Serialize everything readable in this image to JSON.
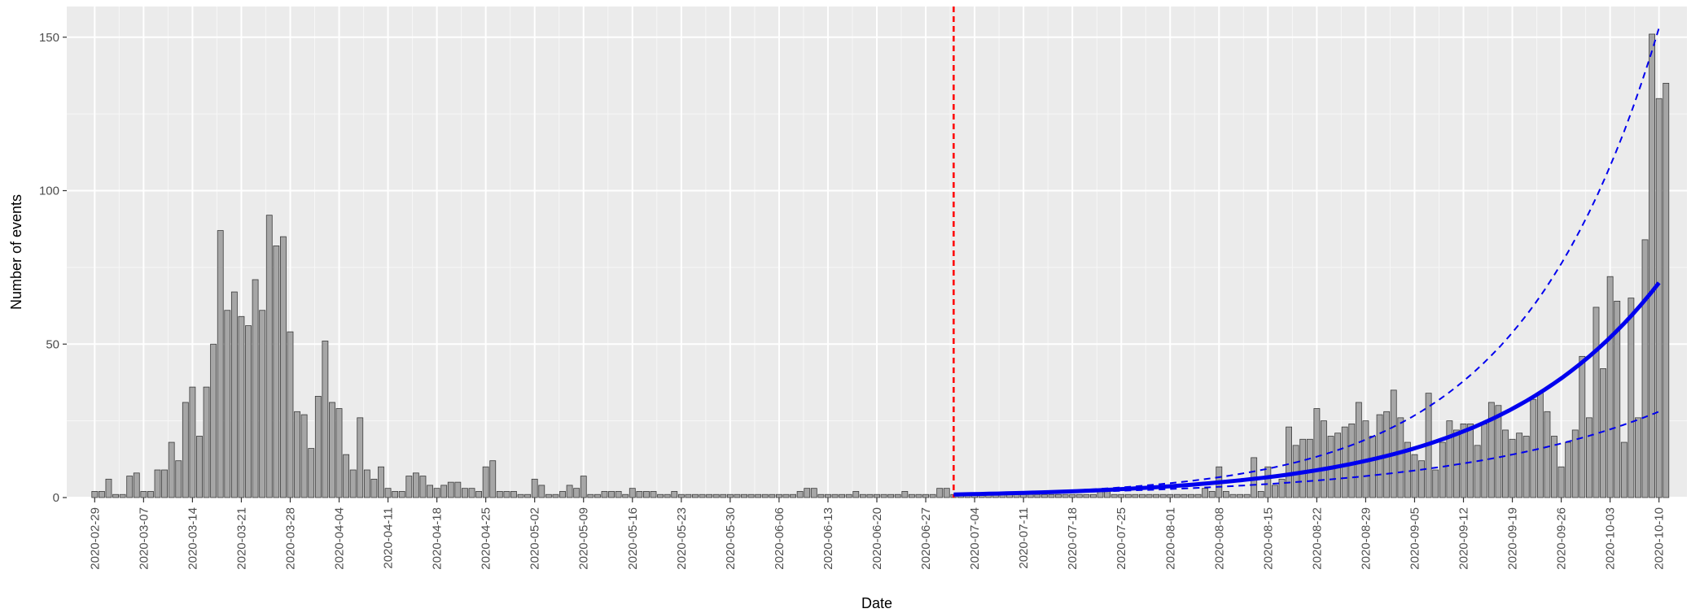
{
  "chart_data": {
    "type": "bar",
    "xlabel": "Date",
    "ylabel": "Number of events",
    "ylim": [
      0,
      160
    ],
    "y_ticks": [
      0,
      50,
      100,
      150
    ],
    "x_range": [
      "2020-02-25",
      "2020-10-14"
    ],
    "x_ticks": [
      "2020-02-29",
      "2020-03-07",
      "2020-03-14",
      "2020-03-21",
      "2020-03-28",
      "2020-04-04",
      "2020-04-11",
      "2020-04-18",
      "2020-04-25",
      "2020-05-02",
      "2020-05-09",
      "2020-05-16",
      "2020-05-23",
      "2020-05-30",
      "2020-06-06",
      "2020-06-13",
      "2020-06-20",
      "2020-06-27",
      "2020-07-04",
      "2020-07-11",
      "2020-07-18",
      "2020-07-25",
      "2020-08-01",
      "2020-08-08",
      "2020-08-15",
      "2020-08-22",
      "2020-08-29",
      "2020-09-05",
      "2020-09-12",
      "2020-09-19",
      "2020-09-26",
      "2020-10-03",
      "2020-10-10"
    ],
    "grid": true,
    "background": "#ebebeb",
    "bar_fill": "#a6a6a6",
    "bar_stroke": "#3a3a3a",
    "bars": {
      "start_date": "2020-02-29",
      "values": [
        2,
        2,
        6,
        1,
        1,
        7,
        8,
        2,
        2,
        9,
        9,
        18,
        12,
        31,
        36,
        20,
        36,
        50,
        87,
        61,
        67,
        59,
        56,
        71,
        61,
        92,
        82,
        85,
        54,
        28,
        27,
        16,
        33,
        51,
        31,
        29,
        14,
        9,
        26,
        9,
        6,
        10,
        3,
        2,
        2,
        7,
        8,
        7,
        4,
        3,
        4,
        5,
        5,
        3,
        3,
        2,
        10,
        12,
        2,
        2,
        2,
        1,
        1,
        6,
        4,
        1,
        1,
        2,
        4,
        3,
        7,
        1,
        1,
        2,
        2,
        2,
        1,
        3,
        2,
        2,
        2,
        1,
        1,
        2,
        1,
        1,
        1,
        1,
        1,
        1,
        1,
        1,
        1,
        1,
        1,
        1,
        1,
        1,
        1,
        1,
        1,
        2,
        3,
        3,
        1,
        1,
        1,
        1,
        1,
        2,
        1,
        1,
        1,
        1,
        1,
        1,
        2,
        1,
        1,
        1,
        1,
        3,
        3,
        1,
        1,
        1,
        1,
        1,
        1,
        1,
        1,
        1,
        1,
        1,
        1,
        1,
        1,
        1,
        1,
        1,
        1,
        1,
        1,
        1,
        2,
        2,
        1,
        1,
        1,
        1,
        1,
        1,
        1,
        1,
        1,
        1,
        1,
        1,
        1,
        3,
        2,
        10,
        2,
        1,
        1,
        1,
        13,
        2,
        10,
        4,
        6,
        23,
        17,
        19,
        19,
        29,
        25,
        20,
        21,
        23,
        24,
        31,
        25,
        20,
        27,
        28,
        35,
        26,
        18,
        14,
        12,
        34,
        9,
        18,
        25,
        22,
        24,
        24,
        17,
        24,
        31,
        30,
        22,
        19,
        21,
        20,
        32,
        34,
        28,
        20,
        10,
        18,
        22,
        46,
        26,
        62,
        42,
        72,
        64,
        18,
        65,
        26,
        84,
        151,
        130,
        135
      ]
    },
    "vline_date": "2020-07-01",
    "vline_color": "#ff0000",
    "forecast": {
      "color": "#0000ee",
      "start_date": "2020-07-01",
      "end_date": "2020-10-10",
      "fit": {
        "start_value": 1,
        "end_value": 70
      },
      "upper": {
        "start_value": 1,
        "end_value": 153
      },
      "lower": {
        "start_value": 1,
        "end_value": 28
      }
    }
  }
}
